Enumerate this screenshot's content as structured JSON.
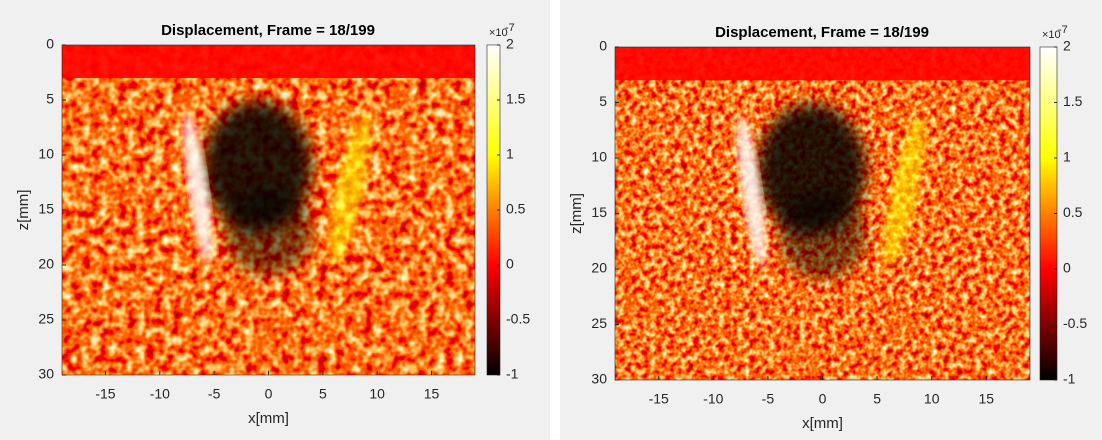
{
  "chart_data": [
    {
      "type": "heatmap",
      "title": "Displacement, Frame = 18/199",
      "xlabel": "x[mm]",
      "ylabel": "z[mm]",
      "xlim": [
        -19,
        19
      ],
      "xticks": [
        -15,
        -10,
        -5,
        0,
        5,
        10,
        15
      ],
      "ylim": [
        0,
        30
      ],
      "yticks": [
        0,
        5,
        10,
        15,
        20,
        25,
        30
      ],
      "y_reversed": true,
      "colormap": [
        "#000000",
        "#ff0000",
        "#ffff00",
        "#ffffff"
      ],
      "clim": [
        -1,
        2
      ],
      "cticks": [
        -1,
        -0.5,
        0,
        0.5,
        1,
        1.5,
        2
      ],
      "cmultiplier": "×10",
      "cexponent": "-7"
    },
    {
      "type": "heatmap",
      "title": "Displacement, Frame = 18/199",
      "xlabel": "x[mm]",
      "ylabel": "z[mm]",
      "xlim": [
        -19,
        19
      ],
      "xticks": [
        -15,
        -10,
        -5,
        0,
        5,
        10,
        15
      ],
      "ylim": [
        0,
        30
      ],
      "yticks": [
        0,
        5,
        10,
        15,
        20,
        25,
        30
      ],
      "y_reversed": true,
      "colormap": [
        "#000000",
        "#ff0000",
        "#ffff00",
        "#ffffff"
      ],
      "clim": [
        -1,
        2
      ],
      "cticks": [
        -1,
        -0.5,
        0,
        0.5,
        1,
        1.5,
        2
      ],
      "cmultiplier": "×10",
      "cexponent": "-7"
    }
  ]
}
